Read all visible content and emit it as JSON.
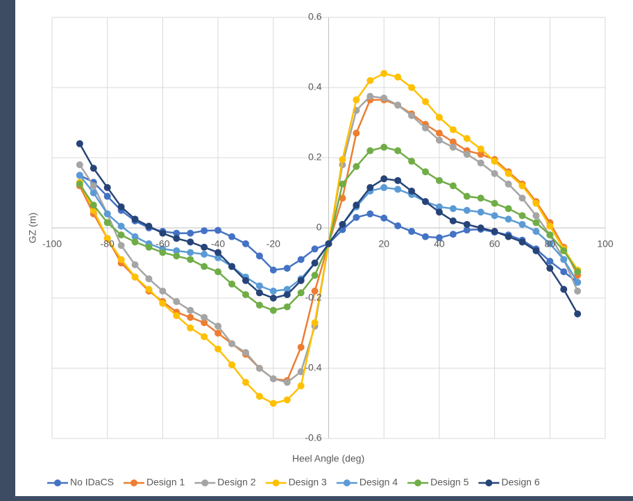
{
  "chart_data": {
    "type": "line",
    "x_label": "Heel Angle (deg)",
    "y_label": "GZ (m)",
    "xlim": [
      -100,
      100
    ],
    "xticks": [
      -100,
      -80,
      -60,
      -40,
      -20,
      20,
      40,
      60,
      80,
      100
    ],
    "ylim": [
      -0.6,
      0.6
    ],
    "yticks": [
      -0.6,
      -0.4,
      -0.2,
      0,
      0.2,
      0.4,
      0.6
    ],
    "grid": true,
    "legend": "bottom",
    "x": [
      -90,
      -85,
      -80,
      -75,
      -70,
      -65,
      -60,
      -55,
      -50,
      -45,
      -40,
      -35,
      -30,
      -25,
      -20,
      -15,
      -10,
      -5,
      0,
      5,
      10,
      15,
      20,
      25,
      30,
      35,
      40,
      45,
      50,
      55,
      60,
      65,
      70,
      75,
      80,
      85,
      90
    ],
    "series": [
      {
        "name": "No IDaCS",
        "color": "#4472c4",
        "values": [
          0.15,
          0.13,
          0.09,
          0.05,
          0.02,
          0,
          -0.01,
          -0.015,
          -0.015,
          -0.008,
          -0.007,
          -0.025,
          -0.045,
          -0.08,
          -0.12,
          -0.115,
          -0.09,
          -0.06,
          -0.045,
          -0.005,
          0.03,
          0.04,
          0.028,
          0.006,
          -0.01,
          -0.025,
          -0.028,
          -0.018,
          -0.006,
          -0.004,
          -0.012,
          -0.02,
          -0.035,
          -0.06,
          -0.095,
          -0.125,
          -0.155
        ]
      },
      {
        "name": "Design 1",
        "color": "#ed7d31",
        "values": [
          0.12,
          0.04,
          -0.03,
          -0.1,
          -0.14,
          -0.18,
          -0.21,
          -0.24,
          -0.255,
          -0.27,
          -0.3,
          -0.33,
          -0.36,
          -0.4,
          -0.43,
          -0.435,
          -0.34,
          -0.18,
          -0.045,
          0.085,
          0.27,
          0.365,
          0.365,
          0.35,
          0.325,
          0.295,
          0.27,
          0.245,
          0.22,
          0.21,
          0.195,
          0.16,
          0.125,
          0.075,
          0.015,
          -0.055,
          -0.135
        ]
      },
      {
        "name": "Design 2",
        "color": "#a5a5a5",
        "values": [
          0.18,
          0.12,
          0.04,
          -0.05,
          -0.105,
          -0.145,
          -0.18,
          -0.21,
          -0.235,
          -0.255,
          -0.28,
          -0.33,
          -0.355,
          -0.4,
          -0.43,
          -0.44,
          -0.41,
          -0.28,
          -0.045,
          0.18,
          0.335,
          0.375,
          0.37,
          0.35,
          0.32,
          0.285,
          0.25,
          0.23,
          0.21,
          0.185,
          0.155,
          0.125,
          0.085,
          0.035,
          -0.02,
          -0.09,
          -0.18
        ]
      },
      {
        "name": "Design 3",
        "color": "#ffc000",
        "values": [
          0.13,
          0.05,
          -0.03,
          -0.09,
          -0.14,
          -0.175,
          -0.215,
          -0.25,
          -0.285,
          -0.31,
          -0.345,
          -0.39,
          -0.44,
          -0.48,
          -0.5,
          -0.49,
          -0.45,
          -0.27,
          -0.045,
          0.195,
          0.365,
          0.42,
          0.44,
          0.43,
          0.4,
          0.36,
          0.315,
          0.28,
          0.255,
          0.225,
          0.19,
          0.155,
          0.12,
          0.07,
          0.005,
          -0.06,
          -0.12
        ]
      },
      {
        "name": "Design 4",
        "color": "#5b9bd5",
        "values": [
          0.15,
          0.1,
          0.04,
          0.005,
          -0.025,
          -0.045,
          -0.06,
          -0.065,
          -0.07,
          -0.075,
          -0.085,
          -0.11,
          -0.14,
          -0.165,
          -0.18,
          -0.175,
          -0.145,
          -0.1,
          -0.045,
          0.01,
          0.06,
          0.105,
          0.115,
          0.11,
          0.095,
          0.075,
          0.06,
          0.055,
          0.05,
          0.045,
          0.035,
          0.025,
          0.01,
          -0.01,
          -0.045,
          -0.09,
          -0.155
        ]
      },
      {
        "name": "Design 5",
        "color": "#70ad47",
        "values": [
          0.125,
          0.065,
          0.015,
          -0.02,
          -0.04,
          -0.055,
          -0.07,
          -0.08,
          -0.09,
          -0.11,
          -0.125,
          -0.16,
          -0.19,
          -0.22,
          -0.235,
          -0.225,
          -0.185,
          -0.135,
          -0.045,
          0.125,
          0.175,
          0.22,
          0.23,
          0.22,
          0.19,
          0.16,
          0.135,
          0.12,
          0.09,
          0.085,
          0.07,
          0.055,
          0.035,
          0.015,
          -0.02,
          -0.065,
          -0.125
        ]
      },
      {
        "name": "Design 6",
        "color": "#264478",
        "values": [
          0.24,
          0.17,
          0.115,
          0.06,
          0.025,
          0.005,
          -0.015,
          -0.03,
          -0.04,
          -0.055,
          -0.07,
          -0.11,
          -0.15,
          -0.185,
          -0.2,
          -0.19,
          -0.15,
          -0.1,
          -0.045,
          0.01,
          0.065,
          0.115,
          0.14,
          0.135,
          0.105,
          0.075,
          0.045,
          0.02,
          0.01,
          0,
          -0.01,
          -0.025,
          -0.04,
          -0.065,
          -0.115,
          -0.175,
          -0.245
        ]
      }
    ]
  }
}
